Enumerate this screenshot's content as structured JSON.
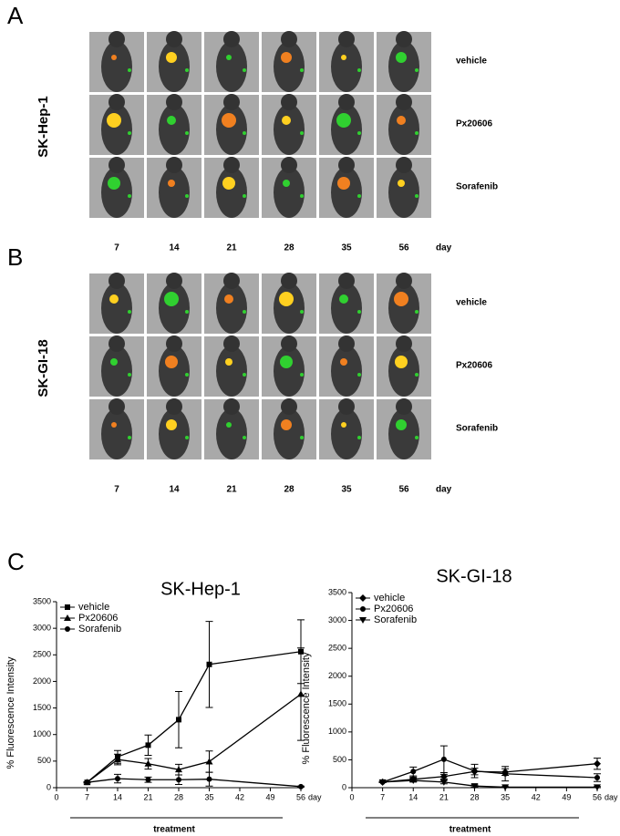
{
  "panels": [
    {
      "label": "A",
      "cell_line": "SK-Hep-1",
      "rows": [
        "vehicle",
        "Px20606",
        "Sorafenib"
      ],
      "days": [
        "7",
        "14",
        "21",
        "28",
        "35",
        "56"
      ],
      "day_label": "day"
    },
    {
      "label": "B",
      "cell_line": "SK-GI-18",
      "rows": [
        "vehicle",
        "Px20606",
        "Sorafenib"
      ],
      "days": [
        "7",
        "14",
        "21",
        "28",
        "35",
        "56"
      ],
      "day_label": "day"
    }
  ],
  "panel_c_label": "C",
  "chart_data": [
    {
      "type": "line",
      "title": "SK-Hep-1",
      "y_label": "% Fluorescence Intensity",
      "x_label": "day",
      "annotation": "treatment",
      "x": [
        7,
        14,
        21,
        28,
        35,
        56
      ],
      "xlim": [
        0,
        56
      ],
      "xticks": [
        0,
        7,
        14,
        21,
        28,
        35,
        42,
        49,
        56
      ],
      "ylim": [
        0,
        3500
      ],
      "yticks": [
        0,
        500,
        1000,
        1500,
        2000,
        2500,
        3000,
        3500
      ],
      "legend": "top-left",
      "series": [
        {
          "name": "vehicle",
          "color": "#000000",
          "marker": "square",
          "values": [
            100,
            580,
            800,
            1280,
            2320,
            2560
          ],
          "errors": [
            10,
            120,
            190,
            530,
            810,
            600
          ]
        },
        {
          "name": "Px20606",
          "color": "#000000",
          "marker": "triangle",
          "values": [
            100,
            530,
            450,
            340,
            490,
            1760
          ],
          "errors": [
            10,
            100,
            100,
            100,
            200,
            870
          ]
        },
        {
          "name": "Sorafenib",
          "color": "#000000",
          "marker": "circle",
          "values": [
            100,
            170,
            150,
            150,
            160,
            20
          ],
          "errors": [
            10,
            80,
            50,
            90,
            130,
            10
          ]
        }
      ]
    },
    {
      "type": "line",
      "title": "SK-GI-18",
      "y_label": "% Fluorescence Intensity",
      "x_label": "day",
      "annotation": "treatment",
      "x": [
        7,
        14,
        21,
        28,
        35,
        56
      ],
      "xlim": [
        0,
        56
      ],
      "xticks": [
        0,
        7,
        14,
        21,
        28,
        35,
        42,
        49,
        56
      ],
      "ylim": [
        0,
        3500
      ],
      "yticks": [
        0,
        500,
        1000,
        1500,
        2000,
        2500,
        3000,
        3500
      ],
      "legend": "top-left",
      "series": [
        {
          "name": "vehicle",
          "color": "#000000",
          "marker": "diamond",
          "values": [
            100,
            150,
            200,
            290,
            280,
            430
          ],
          "errors": [
            10,
            40,
            40,
            60,
            60,
            100
          ]
        },
        {
          "name": "Px20606",
          "color": "#000000",
          "marker": "circle",
          "values": [
            100,
            290,
            510,
            300,
            250,
            180
          ],
          "errors": [
            10,
            80,
            240,
            120,
            130,
            70
          ]
        },
        {
          "name": "Sorafenib",
          "color": "#000000",
          "marker": "triangle-down",
          "values": [
            100,
            130,
            100,
            30,
            10,
            10
          ],
          "errors": [
            10,
            30,
            30,
            20,
            10,
            10
          ]
        }
      ]
    }
  ]
}
